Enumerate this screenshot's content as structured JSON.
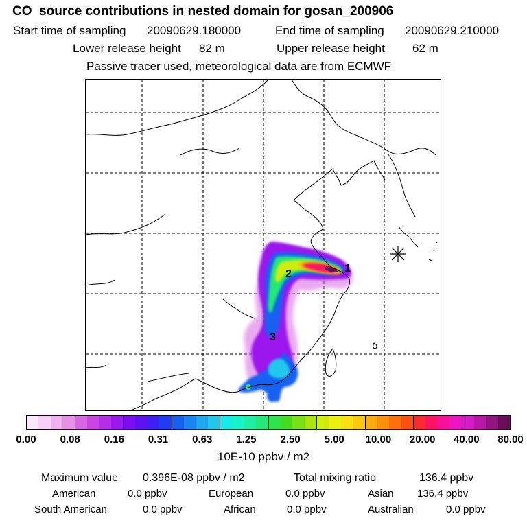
{
  "header": {
    "title": "CO  source contributions in nested domain for gosan_200906",
    "start_label": "Start time of sampling",
    "start_value": "20090629.180000",
    "end_label": "End time of sampling",
    "end_value": "20090629.210000",
    "lower_label": "Lower release height",
    "lower_value": "82 m",
    "upper_label": "Upper release height",
    "upper_value": "62 m",
    "note": "Passive tracer used, meteorological data are from ECMWF"
  },
  "map": {
    "markers": [
      {
        "id": "1",
        "label": "1"
      },
      {
        "id": "2",
        "label": "2"
      },
      {
        "id": "3",
        "label": "3"
      }
    ],
    "receptor_symbol": "star-burst"
  },
  "legend": {
    "ticks": [
      "0.00",
      "0.08",
      "0.16",
      "0.31",
      "0.63",
      "1.25",
      "2.50",
      "5.00",
      "10.00",
      "20.00",
      "40.00",
      "80.00"
    ],
    "colors": [
      "#fbe9fb",
      "#f6d0f6",
      "#efb2ef",
      "#e890e8",
      "#d866e3",
      "#c944e3",
      "#b52ee8",
      "#9c18ee",
      "#7c0ff2",
      "#5d12f4",
      "#3c20f4",
      "#1f3df2",
      "#1660f2",
      "#1a84f2",
      "#1fa8f0",
      "#22c8ec",
      "#14ecec",
      "#16f2cc",
      "#20eea0",
      "#24e878",
      "#2ee24a",
      "#44dc20",
      "#78e014",
      "#a8e610",
      "#d0ec10",
      "#eef010",
      "#fae010",
      "#fcc80e",
      "#fcac0c",
      "#fc900c",
      "#fc700e",
      "#fc5010",
      "#fc2a30",
      "#fc1464",
      "#f8109a",
      "#ec14c4",
      "#d41cc8",
      "#b818a8",
      "#921480",
      "#6a0e5c"
    ],
    "unit": "10E-10 ppbv / m2"
  },
  "summary": {
    "max_label": "Maximum value",
    "max_value": "0.396E-08 ppbv / m2",
    "total_label": "Total mixing ratio",
    "total_value": "136.4 ppbv",
    "regions": [
      {
        "name": "American",
        "value": "0.0 ppbv"
      },
      {
        "name": "European",
        "value": "0.0 ppbv"
      },
      {
        "name": "Asian",
        "value": "136.4 ppbv"
      },
      {
        "name": "South American",
        "value": "0.0 ppbv"
      },
      {
        "name": "African",
        "value": "0.0 ppbv"
      },
      {
        "name": "Australian",
        "value": "0.0 ppbv"
      }
    ]
  }
}
